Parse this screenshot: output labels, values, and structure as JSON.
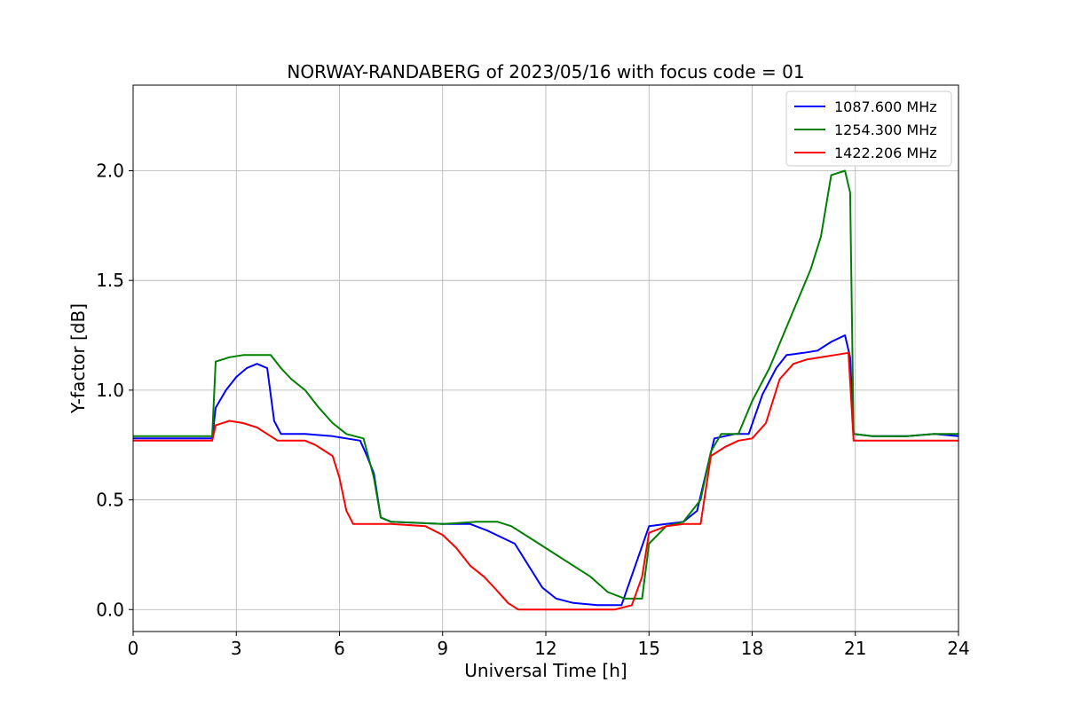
{
  "chart_data": {
    "type": "line",
    "title": "NORWAY-RANDABERG of 2023/05/16 with focus code = 01",
    "xlabel": "Universal Time [h]",
    "ylabel": "Y-factor [dB]",
    "xlim": [
      0,
      24
    ],
    "ylim": [
      -0.1,
      2.39
    ],
    "xticks": [
      0,
      3,
      6,
      9,
      12,
      15,
      18,
      21,
      24
    ],
    "xtick_labels": [
      "0",
      "3",
      "6",
      "9",
      "12",
      "15",
      "18",
      "21",
      "24"
    ],
    "yticks": [
      0.0,
      0.5,
      1.0,
      1.5,
      2.0
    ],
    "ytick_labels": [
      "0.0",
      "0.5",
      "1.0",
      "1.5",
      "2.0"
    ],
    "grid": true,
    "legend_position": "top-right",
    "series": [
      {
        "name": "1087.600 MHz",
        "color": "#0000ff",
        "points": [
          [
            0.0,
            0.78
          ],
          [
            2.3,
            0.78
          ],
          [
            2.4,
            0.92
          ],
          [
            2.7,
            1.0
          ],
          [
            3.0,
            1.06
          ],
          [
            3.3,
            1.1
          ],
          [
            3.6,
            1.12
          ],
          [
            3.9,
            1.1
          ],
          [
            4.1,
            0.86
          ],
          [
            4.3,
            0.8
          ],
          [
            5.0,
            0.8
          ],
          [
            5.8,
            0.79
          ],
          [
            6.2,
            0.78
          ],
          [
            6.6,
            0.77
          ],
          [
            6.8,
            0.7
          ],
          [
            7.0,
            0.62
          ],
          [
            7.2,
            0.42
          ],
          [
            7.5,
            0.4
          ],
          [
            9.0,
            0.39
          ],
          [
            9.8,
            0.39
          ],
          [
            10.3,
            0.36
          ],
          [
            10.7,
            0.33
          ],
          [
            11.1,
            0.3
          ],
          [
            11.5,
            0.2
          ],
          [
            11.9,
            0.1
          ],
          [
            12.3,
            0.05
          ],
          [
            12.8,
            0.03
          ],
          [
            13.5,
            0.02
          ],
          [
            14.2,
            0.02
          ],
          [
            14.6,
            0.2
          ],
          [
            15.0,
            0.38
          ],
          [
            15.5,
            0.39
          ],
          [
            16.0,
            0.4
          ],
          [
            16.4,
            0.45
          ],
          [
            16.7,
            0.65
          ],
          [
            16.9,
            0.78
          ],
          [
            17.5,
            0.8
          ],
          [
            17.9,
            0.8
          ],
          [
            18.3,
            0.98
          ],
          [
            18.7,
            1.1
          ],
          [
            19.0,
            1.16
          ],
          [
            19.5,
            1.17
          ],
          [
            19.9,
            1.18
          ],
          [
            20.3,
            1.22
          ],
          [
            20.7,
            1.25
          ],
          [
            20.85,
            1.15
          ],
          [
            20.95,
            0.8
          ],
          [
            21.5,
            0.79
          ],
          [
            22.5,
            0.79
          ],
          [
            23.3,
            0.8
          ],
          [
            24.0,
            0.79
          ]
        ]
      },
      {
        "name": "1254.300 MHz",
        "color": "#008000",
        "points": [
          [
            0.0,
            0.79
          ],
          [
            2.3,
            0.79
          ],
          [
            2.4,
            1.13
          ],
          [
            2.8,
            1.15
          ],
          [
            3.2,
            1.16
          ],
          [
            3.6,
            1.16
          ],
          [
            4.0,
            1.16
          ],
          [
            4.3,
            1.1
          ],
          [
            4.6,
            1.05
          ],
          [
            5.0,
            1.0
          ],
          [
            5.4,
            0.92
          ],
          [
            5.8,
            0.85
          ],
          [
            6.2,
            0.8
          ],
          [
            6.7,
            0.78
          ],
          [
            7.0,
            0.6
          ],
          [
            7.2,
            0.42
          ],
          [
            7.5,
            0.4
          ],
          [
            9.0,
            0.39
          ],
          [
            10.0,
            0.4
          ],
          [
            10.6,
            0.4
          ],
          [
            11.0,
            0.38
          ],
          [
            11.4,
            0.34
          ],
          [
            11.8,
            0.3
          ],
          [
            12.3,
            0.25
          ],
          [
            12.8,
            0.2
          ],
          [
            13.3,
            0.15
          ],
          [
            13.8,
            0.08
          ],
          [
            14.3,
            0.05
          ],
          [
            14.6,
            0.05
          ],
          [
            14.8,
            0.05
          ],
          [
            15.0,
            0.3
          ],
          [
            15.5,
            0.38
          ],
          [
            16.0,
            0.4
          ],
          [
            16.5,
            0.5
          ],
          [
            16.8,
            0.72
          ],
          [
            17.1,
            0.8
          ],
          [
            17.6,
            0.8
          ],
          [
            18.0,
            0.95
          ],
          [
            18.5,
            1.1
          ],
          [
            18.9,
            1.25
          ],
          [
            19.3,
            1.4
          ],
          [
            19.7,
            1.55
          ],
          [
            20.0,
            1.7
          ],
          [
            20.3,
            1.98
          ],
          [
            20.7,
            2.0
          ],
          [
            20.85,
            1.9
          ],
          [
            20.95,
            0.8
          ],
          [
            21.5,
            0.79
          ],
          [
            22.5,
            0.79
          ],
          [
            23.3,
            0.8
          ],
          [
            24.0,
            0.8
          ]
        ]
      },
      {
        "name": "1422.206 MHz",
        "color": "#ff0000",
        "points": [
          [
            0.0,
            0.77
          ],
          [
            2.3,
            0.77
          ],
          [
            2.4,
            0.84
          ],
          [
            2.8,
            0.86
          ],
          [
            3.2,
            0.85
          ],
          [
            3.6,
            0.83
          ],
          [
            3.9,
            0.8
          ],
          [
            4.2,
            0.77
          ],
          [
            5.0,
            0.77
          ],
          [
            5.3,
            0.75
          ],
          [
            5.8,
            0.7
          ],
          [
            6.0,
            0.6
          ],
          [
            6.2,
            0.45
          ],
          [
            6.4,
            0.39
          ],
          [
            7.5,
            0.39
          ],
          [
            8.5,
            0.38
          ],
          [
            9.0,
            0.34
          ],
          [
            9.4,
            0.28
          ],
          [
            9.8,
            0.2
          ],
          [
            10.2,
            0.15
          ],
          [
            10.5,
            0.1
          ],
          [
            10.9,
            0.03
          ],
          [
            11.2,
            0.0
          ],
          [
            12.0,
            0.0
          ],
          [
            13.0,
            0.0
          ],
          [
            14.0,
            0.0
          ],
          [
            14.5,
            0.02
          ],
          [
            14.8,
            0.15
          ],
          [
            15.0,
            0.35
          ],
          [
            15.5,
            0.38
          ],
          [
            16.0,
            0.39
          ],
          [
            16.5,
            0.39
          ],
          [
            16.8,
            0.7
          ],
          [
            17.2,
            0.74
          ],
          [
            17.6,
            0.77
          ],
          [
            18.0,
            0.78
          ],
          [
            18.4,
            0.85
          ],
          [
            18.8,
            1.05
          ],
          [
            19.2,
            1.12
          ],
          [
            19.6,
            1.14
          ],
          [
            20.0,
            1.15
          ],
          [
            20.4,
            1.16
          ],
          [
            20.8,
            1.17
          ],
          [
            20.95,
            0.77
          ],
          [
            21.5,
            0.77
          ],
          [
            22.5,
            0.77
          ],
          [
            23.3,
            0.77
          ],
          [
            24.0,
            0.77
          ]
        ]
      }
    ]
  }
}
